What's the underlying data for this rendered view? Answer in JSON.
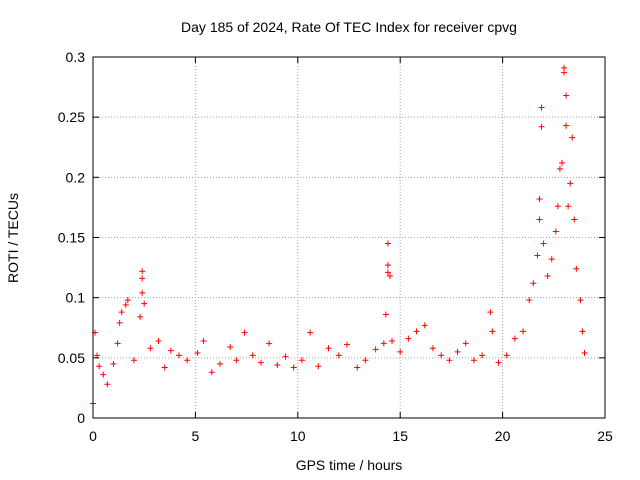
{
  "chart_data": {
    "type": "scatter",
    "title": "Day 185 of 2024, Rate Of TEC Index for receiver cpvg",
    "xlabel": "GPS time / hours",
    "ylabel": "ROTI / TECUs",
    "xlim": [
      0,
      25
    ],
    "ylim": [
      0,
      0.3
    ],
    "xticks": [
      "0",
      "5",
      "10",
      "15",
      "20",
      "25"
    ],
    "yticks": [
      "0",
      "0.05",
      "0.1",
      "0.15",
      "0.2",
      "0.25",
      "0.3"
    ],
    "grid": true,
    "marker": "+",
    "colors": {
      "points": "#ff0000",
      "grid": "#a0a0a0",
      "axes": "#000000"
    },
    "series": [
      {
        "points": [
          [
            0.0,
            0.012
          ],
          [
            0.1,
            0.071
          ],
          [
            0.2,
            0.052
          ],
          [
            0.3,
            0.043
          ],
          [
            0.5,
            0.036
          ],
          [
            0.7,
            0.028
          ],
          [
            1.0,
            0.045
          ],
          [
            1.2,
            0.062
          ],
          [
            1.3,
            0.079
          ],
          [
            1.4,
            0.088
          ],
          [
            1.6,
            0.094
          ],
          [
            1.7,
            0.098
          ],
          [
            2.0,
            0.048
          ],
          [
            2.3,
            0.084
          ],
          [
            2.4,
            0.122
          ],
          [
            2.4,
            0.116
          ],
          [
            2.4,
            0.104
          ],
          [
            2.5,
            0.095
          ],
          [
            2.8,
            0.058
          ],
          [
            3.2,
            0.064
          ],
          [
            3.5,
            0.042
          ],
          [
            3.8,
            0.056
          ],
          [
            4.2,
            0.052
          ],
          [
            4.6,
            0.048
          ],
          [
            5.1,
            0.054
          ],
          [
            5.4,
            0.064
          ],
          [
            5.8,
            0.038
          ],
          [
            6.2,
            0.045
          ],
          [
            6.7,
            0.059
          ],
          [
            7.0,
            0.048
          ],
          [
            7.4,
            0.071
          ],
          [
            7.8,
            0.052
          ],
          [
            8.2,
            0.046
          ],
          [
            8.6,
            0.062
          ],
          [
            9.0,
            0.044
          ],
          [
            9.4,
            0.051
          ],
          [
            9.8,
            0.042
          ],
          [
            10.2,
            0.048
          ],
          [
            10.6,
            0.071
          ],
          [
            11.0,
            0.043
          ],
          [
            11.5,
            0.058
          ],
          [
            12.0,
            0.052
          ],
          [
            12.4,
            0.061
          ],
          [
            12.9,
            0.042
          ],
          [
            13.3,
            0.048
          ],
          [
            13.8,
            0.057
          ],
          [
            14.2,
            0.062
          ],
          [
            14.3,
            0.086
          ],
          [
            14.4,
            0.145
          ],
          [
            14.4,
            0.127
          ],
          [
            14.4,
            0.121
          ],
          [
            14.5,
            0.118
          ],
          [
            14.6,
            0.064
          ],
          [
            15.0,
            0.055
          ],
          [
            15.4,
            0.066
          ],
          [
            15.8,
            0.072
          ],
          [
            16.2,
            0.077
          ],
          [
            16.6,
            0.058
          ],
          [
            17.0,
            0.052
          ],
          [
            17.4,
            0.048
          ],
          [
            17.8,
            0.055
          ],
          [
            18.2,
            0.062
          ],
          [
            18.6,
            0.048
          ],
          [
            19.0,
            0.052
          ],
          [
            19.4,
            0.088
          ],
          [
            19.5,
            0.072
          ],
          [
            19.8,
            0.046
          ],
          [
            20.2,
            0.052
          ],
          [
            20.6,
            0.066
          ],
          [
            21.0,
            0.072
          ],
          [
            21.3,
            0.098
          ],
          [
            21.5,
            0.112
          ],
          [
            21.7,
            0.135
          ],
          [
            21.8,
            0.165
          ],
          [
            21.8,
            0.182
          ],
          [
            21.9,
            0.242
          ],
          [
            21.9,
            0.258
          ],
          [
            22.0,
            0.145
          ],
          [
            22.2,
            0.118
          ],
          [
            22.4,
            0.132
          ],
          [
            22.6,
            0.155
          ],
          [
            22.7,
            0.176
          ],
          [
            22.8,
            0.207
          ],
          [
            22.9,
            0.212
          ],
          [
            23.0,
            0.287
          ],
          [
            23.0,
            0.291
          ],
          [
            23.1,
            0.268
          ],
          [
            23.1,
            0.243
          ],
          [
            23.2,
            0.176
          ],
          [
            23.3,
            0.195
          ],
          [
            23.4,
            0.233
          ],
          [
            23.5,
            0.165
          ],
          [
            23.6,
            0.124
          ],
          [
            23.8,
            0.098
          ],
          [
            23.9,
            0.072
          ],
          [
            24.0,
            0.054
          ]
        ]
      }
    ]
  }
}
